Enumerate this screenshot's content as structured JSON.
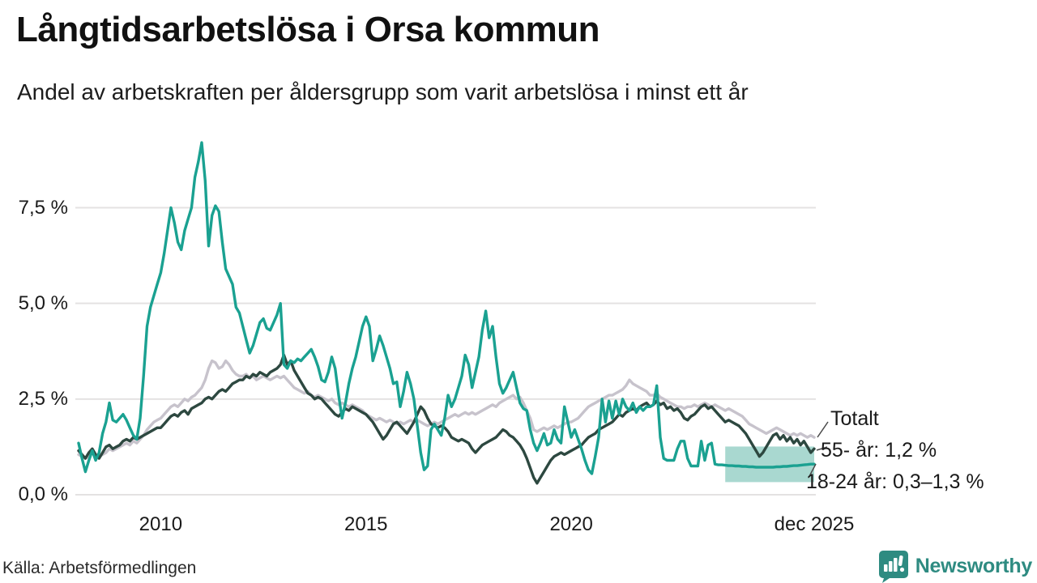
{
  "header": {
    "title": "Långtidsarbetslösa i Orsa kommun",
    "subtitle": "Andel av arbetskraften per åldersgrupp som varit arbetslösa i minst ett år"
  },
  "footer": {
    "source": "Källa: Arbetsförmedlingen",
    "brand": "Newsworthy"
  },
  "colors": {
    "youth_line": "#1aa191",
    "senior_line": "#2d4840",
    "total_line": "#c7c3cc",
    "band_fill": "#a9d8d0",
    "gridline": "#e4e2e2",
    "brand_teal": "#2e8b81",
    "connector": "#4a4a4a"
  },
  "chart_data": {
    "type": "line",
    "title": "Långtidsarbetslösa i Orsa kommun",
    "subtitle": "Andel av arbetskraften per åldersgrupp som varit arbetslösa i minst ett år",
    "x_start": "2008-01",
    "x_end": "2025-12",
    "x_frequency": "monthly",
    "ylim": [
      0,
      9.6
    ],
    "grid": "horizontal",
    "y_ticks": [
      0,
      2.5,
      5.0,
      7.5
    ],
    "y_tick_labels": [
      "0,0 %",
      "2,5 %",
      "5,0 %",
      "7,5 %"
    ],
    "x_tick_month_indices": [
      24,
      84,
      144,
      215
    ],
    "x_tick_labels": [
      "2010",
      "2015",
      "2020",
      "dec 2025"
    ],
    "series": [
      {
        "name": "Totalt",
        "color": "#c7c3cc",
        "values": [
          1.05,
          1.0,
          0.95,
          1.0,
          1.1,
          1.05,
          1.0,
          1.05,
          1.1,
          1.2,
          1.15,
          1.2,
          1.25,
          1.3,
          1.35,
          1.3,
          1.4,
          1.35,
          1.45,
          1.55,
          1.7,
          1.8,
          1.9,
          1.95,
          2.0,
          2.1,
          2.2,
          2.3,
          2.35,
          2.3,
          2.4,
          2.5,
          2.45,
          2.55,
          2.6,
          2.7,
          2.8,
          3.0,
          3.3,
          3.5,
          3.45,
          3.3,
          3.35,
          3.5,
          3.4,
          3.25,
          3.15,
          3.1,
          3.1,
          3.15,
          3.05,
          3.1,
          3.0,
          3.05,
          3.1,
          3.05,
          3.0,
          3.05,
          3.1,
          3.05,
          3.1,
          3.0,
          2.9,
          2.8,
          2.75,
          2.7,
          2.65,
          2.7,
          2.6,
          2.55,
          2.6,
          2.55,
          2.5,
          2.45,
          2.5,
          2.4,
          2.35,
          2.4,
          2.35,
          2.3,
          2.35,
          2.3,
          2.25,
          2.2,
          2.1,
          2.05,
          2.0,
          1.95,
          2.0,
          1.95,
          1.9,
          1.95,
          1.9,
          1.85,
          1.9,
          1.85,
          1.9,
          1.95,
          1.9,
          1.95,
          1.9,
          1.85,
          1.8,
          1.85,
          1.9,
          1.85,
          1.9,
          1.95,
          2.0,
          2.05,
          2.1,
          2.05,
          2.1,
          2.15,
          2.1,
          2.15,
          2.1,
          2.15,
          2.2,
          2.25,
          2.3,
          2.35,
          2.3,
          2.4,
          2.45,
          2.5,
          2.55,
          2.6,
          2.5,
          2.55,
          2.4,
          2.2,
          2.0,
          1.7,
          1.65,
          1.7,
          1.75,
          1.7,
          1.75,
          1.8,
          1.75,
          1.8,
          1.85,
          1.9,
          1.9,
          1.95,
          2.0,
          2.1,
          2.2,
          2.3,
          2.35,
          2.4,
          2.45,
          2.5,
          2.55,
          2.6,
          2.6,
          2.65,
          2.7,
          2.75,
          2.85,
          3.0,
          2.9,
          2.85,
          2.8,
          2.75,
          2.7,
          2.6,
          2.6,
          2.65,
          2.55,
          2.5,
          2.45,
          2.4,
          2.35,
          2.3,
          2.3,
          2.25,
          2.3,
          2.3,
          2.35,
          2.3,
          2.35,
          2.4,
          2.35,
          2.3,
          2.35,
          2.3,
          2.25,
          2.2,
          2.25,
          2.2,
          2.15,
          2.1,
          2.05,
          1.95,
          1.85,
          1.8,
          1.75,
          1.7,
          1.65,
          1.6,
          1.65,
          1.7,
          1.75,
          1.7,
          1.65,
          1.6,
          1.55,
          1.6,
          1.55,
          1.6,
          1.55,
          1.5,
          1.55,
          1.5
        ]
      },
      {
        "name": "55- år",
        "color": "#2d4840",
        "final_value_label": "1,2 %",
        "values": [
          1.15,
          1.05,
          0.95,
          1.1,
          1.2,
          1.05,
          0.95,
          1.1,
          1.25,
          1.3,
          1.2,
          1.25,
          1.3,
          1.4,
          1.45,
          1.4,
          1.5,
          1.45,
          1.5,
          1.55,
          1.6,
          1.65,
          1.7,
          1.75,
          1.75,
          1.85,
          1.95,
          2.05,
          2.1,
          2.05,
          2.15,
          2.2,
          2.1,
          2.25,
          2.3,
          2.35,
          2.4,
          2.5,
          2.55,
          2.5,
          2.6,
          2.7,
          2.75,
          2.7,
          2.8,
          2.9,
          2.95,
          3.0,
          3.0,
          3.1,
          3.05,
          3.15,
          3.1,
          3.2,
          3.15,
          3.1,
          3.2,
          3.25,
          3.3,
          3.4,
          3.65,
          3.4,
          3.5,
          3.25,
          3.1,
          2.95,
          2.8,
          2.65,
          2.6,
          2.5,
          2.55,
          2.5,
          2.4,
          2.3,
          2.2,
          2.1,
          2.05,
          2.15,
          2.25,
          2.2,
          2.3,
          2.25,
          2.2,
          2.15,
          2.1,
          2.0,
          1.9,
          1.75,
          1.6,
          1.45,
          1.55,
          1.7,
          1.85,
          1.9,
          1.8,
          1.7,
          1.6,
          1.75,
          1.9,
          2.1,
          2.3,
          2.2,
          2.0,
          1.85,
          1.8,
          1.75,
          1.8,
          1.75,
          1.65,
          1.5,
          1.45,
          1.4,
          1.45,
          1.4,
          1.35,
          1.2,
          1.1,
          1.2,
          1.3,
          1.35,
          1.4,
          1.45,
          1.5,
          1.6,
          1.7,
          1.65,
          1.55,
          1.5,
          1.4,
          1.3,
          1.15,
          0.95,
          0.7,
          0.45,
          0.3,
          0.45,
          0.6,
          0.75,
          0.9,
          1.0,
          1.05,
          1.1,
          1.05,
          1.1,
          1.15,
          1.2,
          1.25,
          1.3,
          1.4,
          1.5,
          1.55,
          1.6,
          1.7,
          1.75,
          1.8,
          1.85,
          1.9,
          2.0,
          2.1,
          2.05,
          2.15,
          2.2,
          2.25,
          2.2,
          2.3,
          2.35,
          2.4,
          2.3,
          2.35,
          2.45,
          2.35,
          2.4,
          2.25,
          2.3,
          2.2,
          2.25,
          2.15,
          2.0,
          1.95,
          2.05,
          2.1,
          2.2,
          2.3,
          2.35,
          2.25,
          2.3,
          2.2,
          2.1,
          2.0,
          1.9,
          1.95,
          1.9,
          1.85,
          1.8,
          1.7,
          1.6,
          1.45,
          1.3,
          1.15,
          1.0,
          1.1,
          1.25,
          1.4,
          1.55,
          1.6,
          1.45,
          1.55,
          1.4,
          1.5,
          1.35,
          1.45,
          1.3,
          1.4,
          1.25,
          1.1,
          1.2
        ]
      },
      {
        "name": "18-24 år",
        "color": "#1aa191",
        "final_value_label": "0,3–1,3 %",
        "values": [
          1.35,
          0.95,
          0.6,
          0.9,
          1.15,
          0.9,
          1.1,
          1.6,
          1.9,
          2.4,
          1.95,
          1.9,
          2.0,
          2.1,
          1.95,
          1.75,
          1.55,
          1.45,
          2.0,
          3.1,
          4.4,
          4.9,
          5.2,
          5.5,
          5.8,
          6.3,
          6.9,
          7.5,
          7.1,
          6.6,
          6.4,
          6.9,
          7.2,
          7.5,
          8.3,
          8.7,
          9.2,
          8.2,
          6.5,
          7.3,
          7.55,
          7.4,
          6.6,
          5.9,
          5.7,
          5.5,
          4.9,
          4.75,
          4.4,
          4.05,
          3.7,
          3.9,
          4.2,
          4.5,
          4.6,
          4.35,
          4.3,
          4.5,
          4.7,
          5.0,
          3.4,
          3.3,
          3.5,
          3.45,
          3.55,
          3.5,
          3.6,
          3.7,
          3.8,
          3.6,
          3.35,
          3.0,
          2.95,
          3.2,
          3.6,
          3.3,
          2.6,
          2.0,
          2.4,
          2.9,
          3.3,
          3.6,
          4.0,
          4.4,
          4.65,
          4.4,
          3.5,
          3.8,
          4.15,
          3.9,
          3.6,
          3.3,
          2.9,
          2.95,
          2.3,
          2.7,
          3.2,
          2.9,
          2.5,
          1.8,
          1.1,
          0.65,
          0.75,
          1.7,
          1.85,
          1.7,
          1.55,
          2.0,
          2.6,
          2.3,
          2.5,
          2.8,
          3.1,
          3.65,
          3.4,
          2.8,
          3.2,
          3.6,
          4.3,
          4.8,
          4.1,
          4.4,
          3.6,
          2.9,
          2.65,
          2.8,
          3.0,
          3.2,
          2.8,
          2.4,
          2.25,
          2.2,
          1.7,
          1.35,
          1.15,
          1.35,
          1.6,
          1.3,
          1.35,
          1.7,
          1.45,
          1.35,
          2.3,
          1.9,
          1.5,
          1.7,
          1.45,
          1.2,
          0.9,
          0.65,
          0.55,
          1.0,
          1.5,
          2.5,
          1.9,
          2.45,
          2.0,
          2.45,
          2.1,
          2.5,
          2.3,
          2.2,
          2.4,
          2.15,
          2.3,
          2.2,
          2.3,
          2.3,
          2.35,
          2.85,
          1.5,
          0.95,
          0.9,
          0.9,
          0.9,
          1.2,
          1.4,
          1.4,
          0.95,
          0.75,
          0.75,
          0.75,
          1.4,
          0.9,
          1.3,
          1.35,
          0.8,
          0.78,
          0.78,
          0.77,
          0.76,
          0.76,
          0.75,
          0.75,
          0.74,
          0.74,
          0.73,
          0.73,
          0.72,
          0.72,
          0.72,
          0.72,
          0.72,
          0.72,
          0.73,
          0.73,
          0.74,
          0.74,
          0.75,
          0.76,
          0.76,
          0.77,
          0.78,
          0.79,
          0.8,
          0.8
        ]
      }
    ],
    "uncertainty_band": {
      "series": "18-24 år",
      "start_month_index": 189,
      "low": 0.33,
      "high": 1.26,
      "color": "#a9d8d0",
      "label_range": "0,3–1,3 %"
    },
    "annotations": [
      {
        "label": "Totalt"
      },
      {
        "label": "55- år: 1,2 %"
      },
      {
        "label": "18-24 år: 0,3–1,3 %"
      }
    ],
    "legend_position": "right-annotations"
  }
}
